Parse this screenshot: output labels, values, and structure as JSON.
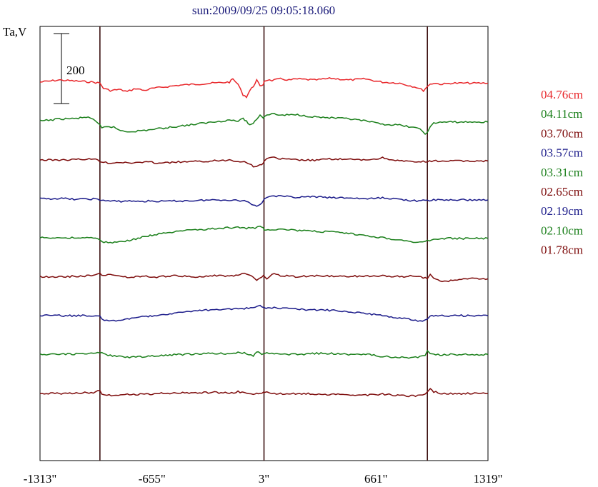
{
  "chart_data": {
    "type": "line",
    "title": "sun:2009/09/25 09:05:18.060",
    "ylabel": "Ta,V",
    "scale_bar_label": "200",
    "scale_bar_value": 200,
    "xlim": [
      -1313,
      1319
    ],
    "x_ticks": [
      {
        "value": -1313,
        "label": "-1313\""
      },
      {
        "value": -655,
        "label": "-655\""
      },
      {
        "value": 3,
        "label": "3\""
      },
      {
        "value": 661,
        "label": "661\""
      },
      {
        "value": 1319,
        "label": "1319\""
      }
    ],
    "vertical_lines": [
      -961,
      3,
      963
    ],
    "series": [
      {
        "name": "04.76cm",
        "color": "#e8262a",
        "offset": 0,
        "x": [
          -1313,
          -1200,
          -1100,
          -1000,
          -961,
          -940,
          -900,
          -850,
          -800,
          -750,
          -700,
          -655,
          -600,
          -500,
          -400,
          -300,
          -200,
          -180,
          -150,
          -120,
          -100,
          -80,
          -60,
          -40,
          -20,
          0,
          3,
          20,
          50,
          100,
          150,
          200,
          300,
          400,
          500,
          600,
          661,
          700,
          800,
          900,
          940,
          963,
          980,
          1000,
          1050,
          1100,
          1150,
          1200,
          1250,
          1319
        ],
        "y": [
          0,
          10,
          5,
          0,
          -5,
          -30,
          -40,
          -35,
          -45,
          -30,
          -40,
          -30,
          -25,
          -15,
          -10,
          -5,
          0,
          15,
          -10,
          -60,
          -70,
          -40,
          -20,
          10,
          -20,
          -10,
          5,
          10,
          8,
          15,
          10,
          15,
          10,
          18,
          10,
          15,
          5,
          0,
          -5,
          -25,
          -40,
          -20,
          -10,
          -5,
          -10,
          -5,
          -5,
          -5,
          -5,
          -5
        ]
      },
      {
        "name": "04.11cm",
        "color": "#1a7f1a",
        "offset": 1,
        "x": [
          -1313,
          -1250,
          -1200,
          -1100,
          -1030,
          -1000,
          -961,
          -950,
          -920,
          -880,
          -840,
          -800,
          -750,
          -700,
          -655,
          -600,
          -500,
          -400,
          -300,
          -200,
          -150,
          -120,
          -100,
          -80,
          -60,
          -40,
          -20,
          0,
          3,
          20,
          50,
          100,
          200,
          300,
          400,
          500,
          600,
          661,
          700,
          800,
          880,
          920,
          950,
          963,
          980,
          1000,
          1050,
          1100,
          1200,
          1319
        ],
        "y": [
          0,
          5,
          10,
          12,
          20,
          5,
          -20,
          -35,
          -25,
          -30,
          -45,
          -50,
          -48,
          -45,
          -40,
          -35,
          -25,
          -15,
          -5,
          5,
          0,
          10,
          0,
          -20,
          -10,
          10,
          30,
          15,
          20,
          30,
          35,
          28,
          30,
          20,
          15,
          10,
          0,
          -10,
          -15,
          -20,
          -30,
          -40,
          -60,
          -50,
          -30,
          -10,
          -5,
          -5,
          -5,
          -5
        ]
      },
      {
        "name": "03.70cm",
        "color": "#7d0b0b",
        "offset": 2,
        "x": [
          -1313,
          -1200,
          -1100,
          -1000,
          -961,
          -940,
          -900,
          -850,
          -800,
          -700,
          -655,
          -600,
          -500,
          -400,
          -300,
          -200,
          -150,
          -100,
          -80,
          -60,
          -40,
          -20,
          0,
          3,
          20,
          50,
          100,
          200,
          300,
          400,
          500,
          600,
          661,
          700,
          800,
          900,
          963,
          1000,
          1100,
          1200,
          1319
        ],
        "y": [
          0,
          0,
          2,
          5,
          -5,
          -10,
          -15,
          -10,
          -15,
          -10,
          -12,
          -15,
          -10,
          -8,
          -5,
          0,
          -5,
          -10,
          -20,
          -30,
          -32,
          -25,
          -15,
          -5,
          10,
          12,
          5,
          0,
          -2,
          5,
          2,
          0,
          5,
          10,
          -5,
          -10,
          -8,
          -5,
          -5,
          -5,
          -5
        ]
      },
      {
        "name": "03.57cm",
        "color": "#1b1b8a",
        "offset": 3,
        "x": [
          -1313,
          -1200,
          -1100,
          -1000,
          -961,
          -940,
          -900,
          -850,
          -800,
          -700,
          -655,
          -600,
          -500,
          -400,
          -300,
          -200,
          -150,
          -100,
          -80,
          -60,
          -40,
          -20,
          0,
          3,
          20,
          50,
          100,
          200,
          300,
          400,
          500,
          600,
          661,
          700,
          800,
          900,
          963,
          1000,
          1100,
          1200,
          1319
        ],
        "y": [
          0,
          2,
          -2,
          0,
          -5,
          -8,
          -10,
          -12,
          -10,
          -12,
          -10,
          -12,
          -10,
          -8,
          -5,
          -5,
          -8,
          -10,
          -20,
          -30,
          -32,
          -25,
          -10,
          0,
          10,
          15,
          12,
          8,
          10,
          5,
          5,
          0,
          2,
          5,
          -2,
          -10,
          -8,
          -5,
          -5,
          -5,
          -5
        ]
      },
      {
        "name": "03.31cm",
        "color": "#1a7f1a",
        "offset": 4,
        "x": [
          -1313,
          -1200,
          -1100,
          -1000,
          -961,
          -950,
          -900,
          -850,
          -800,
          -750,
          -700,
          -655,
          -600,
          -500,
          -400,
          -300,
          -200,
          -150,
          -100,
          -50,
          -20,
          0,
          3,
          50,
          100,
          200,
          300,
          400,
          500,
          600,
          661,
          700,
          800,
          880,
          920,
          950,
          963,
          1000,
          1100,
          1200,
          1319
        ],
        "y": [
          0,
          0,
          0,
          0,
          -10,
          -20,
          -22,
          -20,
          -15,
          -5,
          5,
          12,
          20,
          30,
          38,
          42,
          48,
          50,
          45,
          48,
          55,
          45,
          40,
          40,
          42,
          35,
          30,
          28,
          20,
          10,
          5,
          0,
          -10,
          -20,
          -22,
          -20,
          -15,
          -5,
          -3,
          -3,
          -3
        ]
      },
      {
        "name": "02.65cm",
        "color": "#7d0b0b",
        "offset": 5,
        "x": [
          -1313,
          -1200,
          -1100,
          -1000,
          -961,
          -940,
          -900,
          -850,
          -800,
          -700,
          -655,
          -600,
          -500,
          -400,
          -300,
          -200,
          -150,
          -100,
          -60,
          -40,
          -20,
          0,
          3,
          20,
          50,
          100,
          200,
          300,
          400,
          500,
          600,
          661,
          700,
          800,
          900,
          963,
          980,
          1000,
          1050,
          1100,
          1200,
          1319
        ],
        "y": [
          0,
          0,
          2,
          5,
          15,
          5,
          10,
          5,
          -5,
          5,
          -5,
          0,
          5,
          0,
          5,
          2,
          10,
          15,
          0,
          -20,
          -10,
          10,
          5,
          -10,
          15,
          5,
          0,
          5,
          2,
          0,
          5,
          0,
          5,
          0,
          5,
          -10,
          10,
          -5,
          -25,
          -20,
          -10,
          -10
        ]
      },
      {
        "name": "02.19cm",
        "color": "#1b1b8a",
        "offset": 6,
        "x": [
          -1313,
          -1200,
          -1100,
          -1000,
          -961,
          -950,
          -920,
          -880,
          -840,
          -800,
          -750,
          -700,
          -655,
          -600,
          -500,
          -400,
          -300,
          -200,
          -100,
          -50,
          -20,
          0,
          3,
          50,
          100,
          200,
          300,
          400,
          500,
          600,
          661,
          700,
          800,
          880,
          920,
          950,
          963,
          980,
          1000,
          1100,
          1200,
          1319
        ],
        "y": [
          0,
          0,
          0,
          0,
          -5,
          -15,
          -25,
          -25,
          -20,
          -15,
          -10,
          -5,
          0,
          5,
          15,
          22,
          28,
          32,
          35,
          38,
          45,
          40,
          38,
          38,
          35,
          30,
          28,
          25,
          20,
          10,
          5,
          0,
          -10,
          -20,
          -25,
          -22,
          -15,
          -5,
          0,
          0,
          0,
          0
        ]
      },
      {
        "name": "02.10cm",
        "color": "#1a7f1a",
        "offset": 7,
        "x": [
          -1313,
          -1200,
          -1100,
          -1000,
          -961,
          -940,
          -900,
          -850,
          -800,
          -700,
          -655,
          -600,
          -500,
          -400,
          -300,
          -200,
          -150,
          -100,
          -60,
          -40,
          -20,
          0,
          3,
          20,
          50,
          100,
          200,
          300,
          400,
          500,
          600,
          661,
          700,
          800,
          880,
          920,
          950,
          963,
          980,
          1000,
          1100,
          1200,
          1319
        ],
        "y": [
          0,
          2,
          3,
          5,
          10,
          5,
          -5,
          -10,
          -12,
          -10,
          -8,
          -5,
          0,
          2,
          5,
          5,
          10,
          5,
          -5,
          15,
          5,
          0,
          2,
          10,
          5,
          2,
          0,
          5,
          5,
          0,
          2,
          -5,
          -10,
          -12,
          -15,
          -10,
          -5,
          15,
          5,
          0,
          0,
          0,
          0
        ]
      },
      {
        "name": "01.78cm",
        "color": "#7d0b0b",
        "offset": 8,
        "x": [
          -1313,
          -1200,
          -1100,
          -1000,
          -961,
          -950,
          -920,
          -880,
          -840,
          -800,
          -700,
          -655,
          -600,
          -500,
          -400,
          -300,
          -200,
          -150,
          -100,
          -60,
          -40,
          -20,
          0,
          3,
          20,
          50,
          100,
          200,
          300,
          400,
          500,
          600,
          661,
          700,
          800,
          880,
          920,
          950,
          963,
          980,
          1000,
          1050,
          1100,
          1200,
          1319
        ],
        "y": [
          0,
          0,
          2,
          5,
          15,
          0,
          -5,
          -10,
          -8,
          -5,
          -3,
          -2,
          0,
          2,
          3,
          5,
          2,
          8,
          5,
          -5,
          -2,
          2,
          5,
          0,
          5,
          2,
          -2,
          0,
          -2,
          -5,
          -5,
          -8,
          -5,
          -3,
          -10,
          -12,
          -8,
          -5,
          5,
          20,
          8,
          0,
          -2,
          0,
          0
        ]
      }
    ]
  }
}
